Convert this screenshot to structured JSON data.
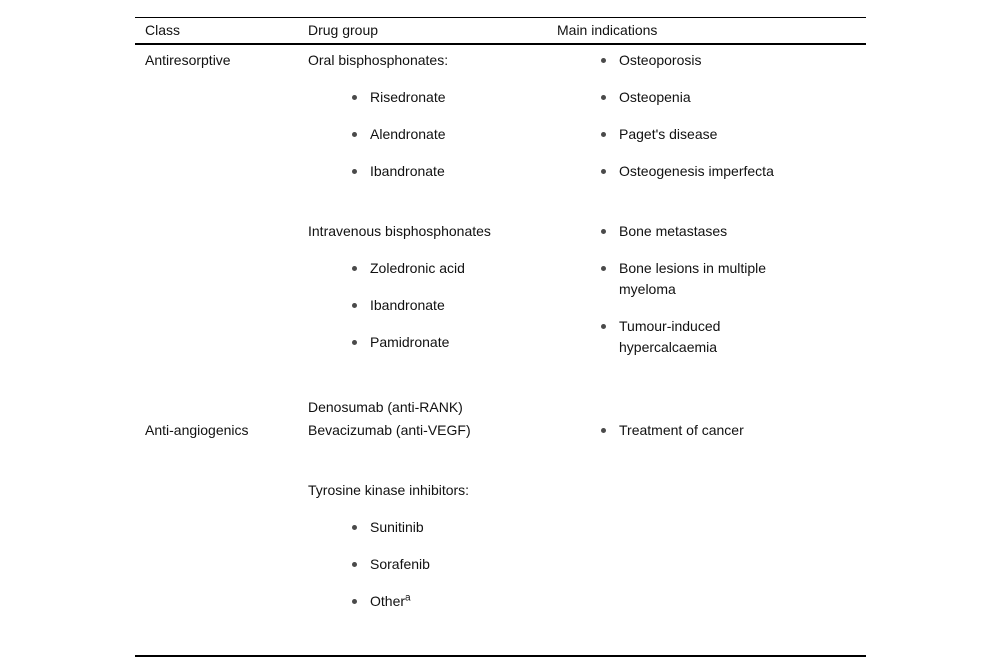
{
  "colors": {
    "text": "#111111",
    "rule": "#000000",
    "bullet": "#4a4a4a"
  },
  "headers": {
    "class": "Class",
    "drug_group": "Drug group",
    "indications": "Main indications"
  },
  "rows": [
    {
      "class_label": "Antiresorptive",
      "blocks": [
        {
          "group_label": "Oral bisphosphonates:",
          "drugs": [
            "Risedronate",
            "Alendronate",
            "Ibandronate"
          ],
          "indications": [
            "Osteoporosis",
            "Osteopenia",
            "Paget's disease",
            "Osteogenesis imperfecta"
          ]
        },
        {
          "group_label": "Intravenous bisphosphonates",
          "drugs": [
            "Zoledronic acid",
            "Ibandronate",
            "Pamidronate"
          ],
          "indications": [
            "Bone metastases",
            "Bone lesions in multiple myeloma",
            "Tumour-induced hypercalcaemia"
          ]
        },
        {
          "group_label": "Denosumab (anti-RANK)",
          "drugs": [],
          "indications": []
        }
      ]
    },
    {
      "class_label": "Anti-angiogenics",
      "blocks": [
        {
          "group_label": "Bevacizumab (anti-VEGF)",
          "drugs": [],
          "indications": [
            "Treatment of cancer"
          ]
        },
        {
          "group_label": "Tyrosine kinase inhibitors:",
          "drugs": [
            "Sunitinib",
            "Sorafenib",
            "Other"
          ],
          "footnote_marker": "a",
          "indications": []
        }
      ]
    }
  ]
}
